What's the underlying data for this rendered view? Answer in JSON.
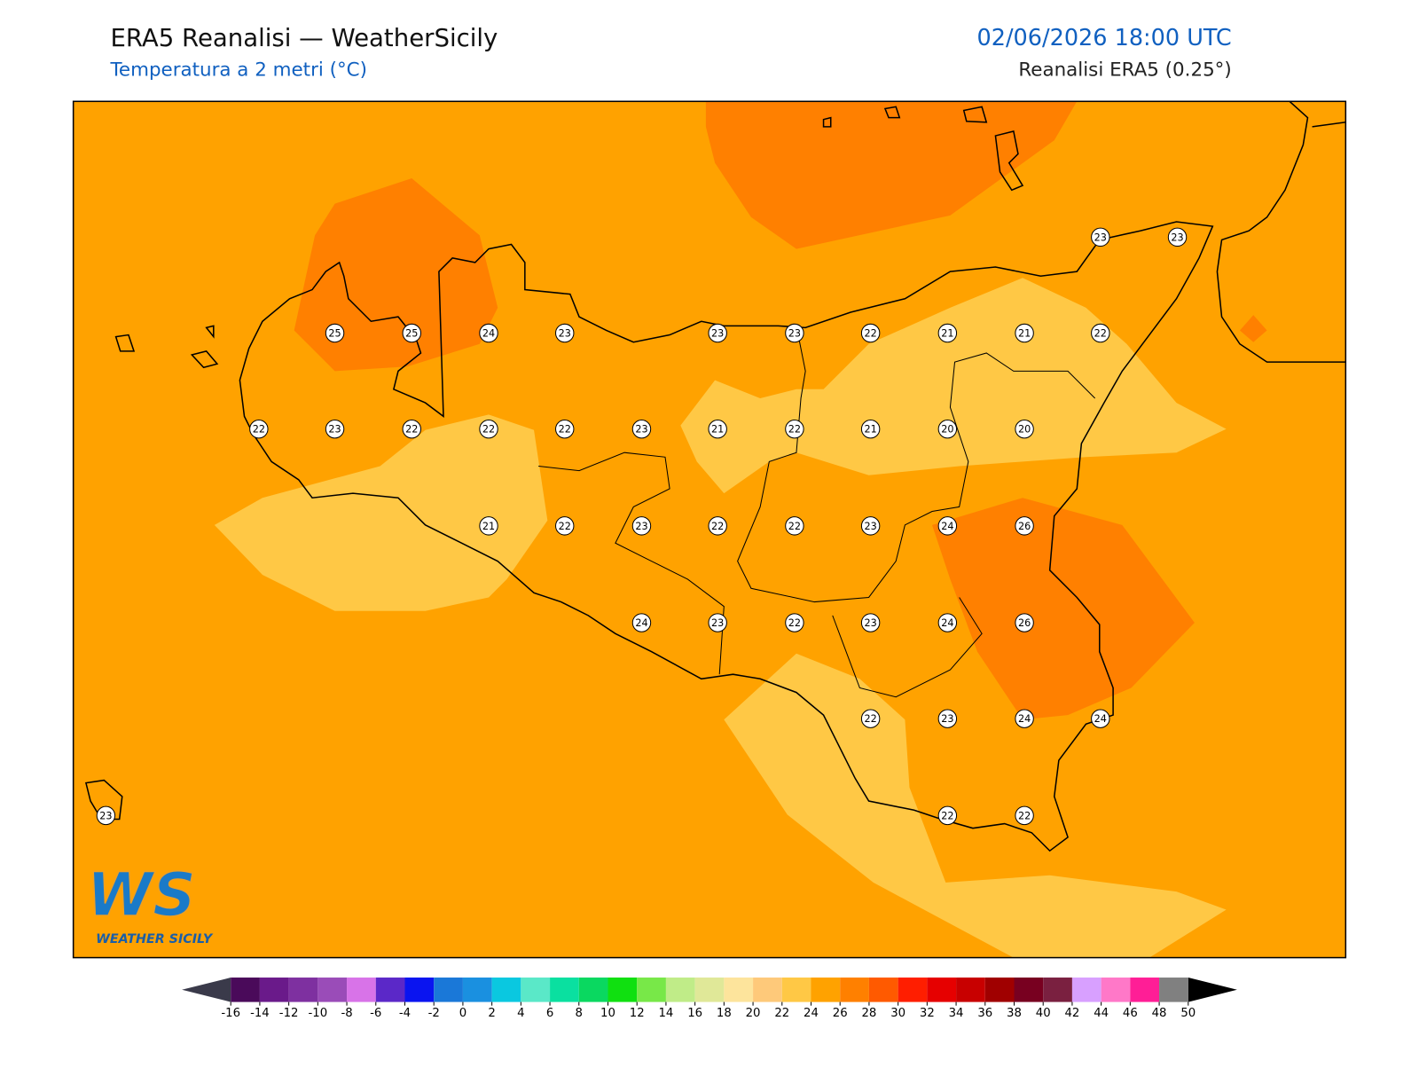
{
  "header": {
    "title": "ERA5 Reanalisi — WeatherSicily",
    "subtitle": "Temperatura a 2 metri (°C)",
    "datetime": "02/06/2026 18:00 UTC",
    "source": "Reanalisi ERA5 (0.25°)"
  },
  "stations": {
    "values": [
      25,
      25,
      24,
      23,
      23,
      23,
      22,
      21,
      21,
      22,
      23,
      23,
      22,
      23,
      22,
      22,
      22,
      23,
      21,
      22,
      21,
      20,
      20,
      21,
      22,
      23,
      22,
      22,
      23,
      24,
      26,
      24,
      23,
      22,
      23,
      24,
      26,
      22,
      23,
      24,
      24,
      23,
      22,
      22
    ]
  },
  "colorbar": {
    "ticks": [
      -16,
      -14,
      -12,
      -10,
      -8,
      -6,
      -4,
      -2,
      0,
      2,
      4,
      6,
      8,
      10,
      12,
      14,
      16,
      18,
      20,
      22,
      24,
      26,
      28,
      30,
      32,
      34,
      36,
      38,
      40,
      42,
      44,
      46,
      48,
      50
    ],
    "colors": [
      "#4a0a5a",
      "#6a1a8a",
      "#7e30a0",
      "#9a4cb8",
      "#d873e8",
      "#5b28c8",
      "#0a14f0",
      "#1a78d8",
      "#1a90e0",
      "#0ac8e0",
      "#5ae8c8",
      "#0ae0a0",
      "#0ad860",
      "#10e010",
      "#78e848",
      "#c0ec88",
      "#e0e898",
      "#fde49c",
      "#fec97a",
      "#ffc845",
      "#ffa200",
      "#ff8000",
      "#ff5a00",
      "#ff1e00",
      "#e60000",
      "#c80000",
      "#a00000",
      "#780020",
      "#7a2040",
      "#d8a0ff",
      "#ff78c8",
      "#ff1e96",
      "#808080"
    ],
    "under_color": "#3a3a4a",
    "over_color": "#000000"
  },
  "logo": {
    "mark": "WS",
    "text": "WEATHER SICILY"
  }
}
